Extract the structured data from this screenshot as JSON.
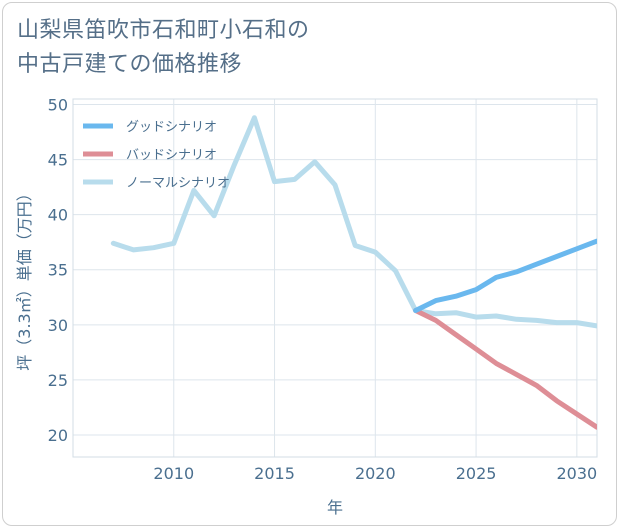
{
  "title_line1": "山梨県笛吹市石和町小石和の",
  "title_line2": "中古戸建ての価格推移",
  "chart_data": {
    "type": "line",
    "xlabel": "年",
    "ylabel": "坪（3.3㎡）単価（万円）",
    "xlim": [
      2005,
      2031
    ],
    "ylim": [
      18,
      50.5
    ],
    "x_ticks": [
      2010,
      2015,
      2020,
      2025,
      2030
    ],
    "y_ticks": [
      20,
      25,
      30,
      35,
      40,
      45,
      50
    ],
    "grid": true,
    "legend_position": "top-left",
    "series": [
      {
        "name": "グッドシナリオ",
        "color": "#6ab8ee",
        "x": [
          2022,
          2023,
          2024,
          2025,
          2026,
          2027,
          2028,
          2029,
          2030,
          2031
        ],
        "values": [
          31.3,
          32.2,
          32.6,
          33.2,
          34.3,
          34.8,
          35.5,
          36.2,
          36.9,
          37.6
        ]
      },
      {
        "name": "バッドシナリオ",
        "color": "#de8e96",
        "x": [
          2022,
          2023,
          2024,
          2025,
          2026,
          2027,
          2028,
          2029,
          2030,
          2031
        ],
        "values": [
          31.3,
          30.4,
          29.1,
          27.8,
          26.5,
          25.5,
          24.5,
          23.1,
          21.9,
          20.7
        ]
      },
      {
        "name": "ノーマルシナリオ",
        "color": "#b8dcec",
        "x": [
          2007,
          2008,
          2009,
          2010,
          2011,
          2012,
          2013,
          2014,
          2015,
          2016,
          2017,
          2018,
          2019,
          2020,
          2021,
          2022,
          2023,
          2024,
          2025,
          2026,
          2027,
          2028,
          2029,
          2030,
          2031
        ],
        "values": [
          37.4,
          36.8,
          37.0,
          37.4,
          42.2,
          39.9,
          44.5,
          48.8,
          43.0,
          43.2,
          44.8,
          42.7,
          37.2,
          36.6,
          34.9,
          31.3,
          31.0,
          31.1,
          30.7,
          30.8,
          30.5,
          30.4,
          30.2,
          30.2,
          29.9
        ]
      }
    ]
  }
}
